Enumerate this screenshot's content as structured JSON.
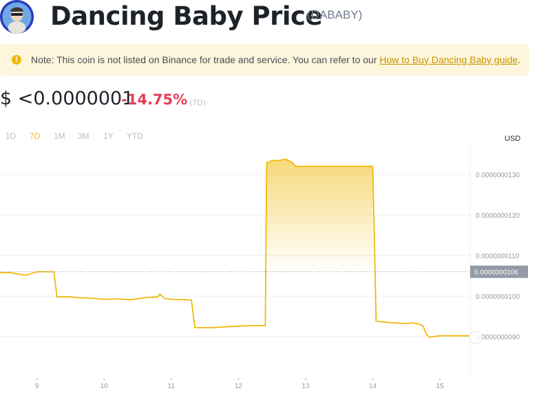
{
  "header": {
    "title": "Dancing Baby Price",
    "symbol": "(DABABY)"
  },
  "notice": {
    "text": "Note: This coin is not listed on Binance for trade and service. You can refer to our ",
    "link": "How to Buy Dancing Baby guide",
    "end": ".",
    "icon": "warning-icon"
  },
  "price": {
    "value": "$ <0.0000001",
    "change": "-14.75%",
    "period": "(7D)",
    "change_color": "#e04057"
  },
  "ranges": [
    "1D",
    "7D",
    "1M",
    "3M",
    "1Y",
    "YTD"
  ],
  "active_range": "7D",
  "currency": "USD",
  "chart_data": {
    "type": "area",
    "title": "",
    "xlabel": "",
    "ylabel": "",
    "x_ticks": [
      "9",
      "10",
      "11",
      "12",
      "13",
      "14",
      "15"
    ],
    "y_ticks": [
      "0.0000000130",
      "0.0000000120",
      "0.0000000110",
      "0.0000000100",
      "0.0000000090"
    ],
    "y_tick_values": [
      1.3e-08,
      1.2e-08,
      1.1e-08,
      1e-08,
      9e-09
    ],
    "current_label": "0.0000000106",
    "current_value": 1.06e-08,
    "ylim": [
      8.6e-09,
      1.34e-08
    ],
    "xlim": [
      8.45,
      15.45
    ],
    "color": "#f0b90b",
    "series": [
      {
        "x": [
          8.45,
          8.6,
          8.8,
          8.85,
          9.0,
          9.1,
          9.25,
          9.3,
          9.5,
          9.6,
          9.8,
          10.0,
          10.2,
          10.4,
          10.6,
          10.8,
          10.83,
          10.9,
          11.0,
          11.2,
          11.3,
          11.35,
          11.4,
          11.6,
          11.8,
          12.0,
          12.2,
          12.4,
          12.42,
          12.45,
          12.5,
          12.6,
          12.7,
          12.8,
          12.85,
          13.0,
          13.5,
          14.0,
          14.05,
          14.1,
          14.3,
          14.5,
          14.6,
          14.7,
          14.75,
          14.8,
          14.85,
          14.9,
          15.0,
          15.2,
          15.45
        ],
        "y": [
          1.058e-08,
          1.058e-08,
          1.052e-08,
          1.052e-08,
          1.06e-08,
          1.06e-08,
          1.06e-08,
          9.98e-09,
          9.98e-09,
          9.96e-09,
          9.95e-09,
          9.92e-09,
          9.93e-09,
          9.91e-09,
          9.96e-09,
          9.98e-09,
          1.005e-08,
          9.94e-09,
          9.92e-09,
          9.91e-09,
          9.9e-09,
          9.22e-09,
          9.22e-09,
          9.22e-09,
          9.24e-09,
          9.26e-09,
          9.27e-09,
          9.27e-09,
          1.33e-08,
          1.33e-08,
          1.335e-08,
          1.334e-08,
          1.338e-08,
          1.33e-08,
          1.32e-08,
          1.32e-08,
          1.32e-08,
          1.32e-08,
          9.38e-09,
          9.37e-09,
          9.34e-09,
          9.32e-09,
          9.34e-09,
          9.3e-09,
          9.26e-09,
          9.05e-09,
          8.98e-09,
          9e-09,
          9.02e-09,
          9.02e-09,
          9.02e-09
        ]
      }
    ]
  }
}
